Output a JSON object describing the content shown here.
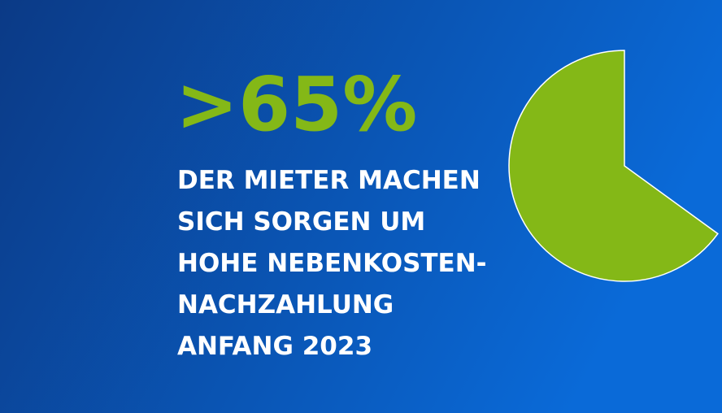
{
  "chart_data": {
    "type": "pie",
    "values": [
      65
    ],
    "value_labels": [
      ">65%"
    ],
    "color": "#84b817",
    "start": "top",
    "direction": "counterclockwise",
    "caption_lines": [
      "DER MIETER MACHEN",
      "SICH SORGEN UM",
      "HOHE NEBENKOSTEN-",
      "NACHZAHLUNG",
      "ANFANG 2023"
    ]
  }
}
